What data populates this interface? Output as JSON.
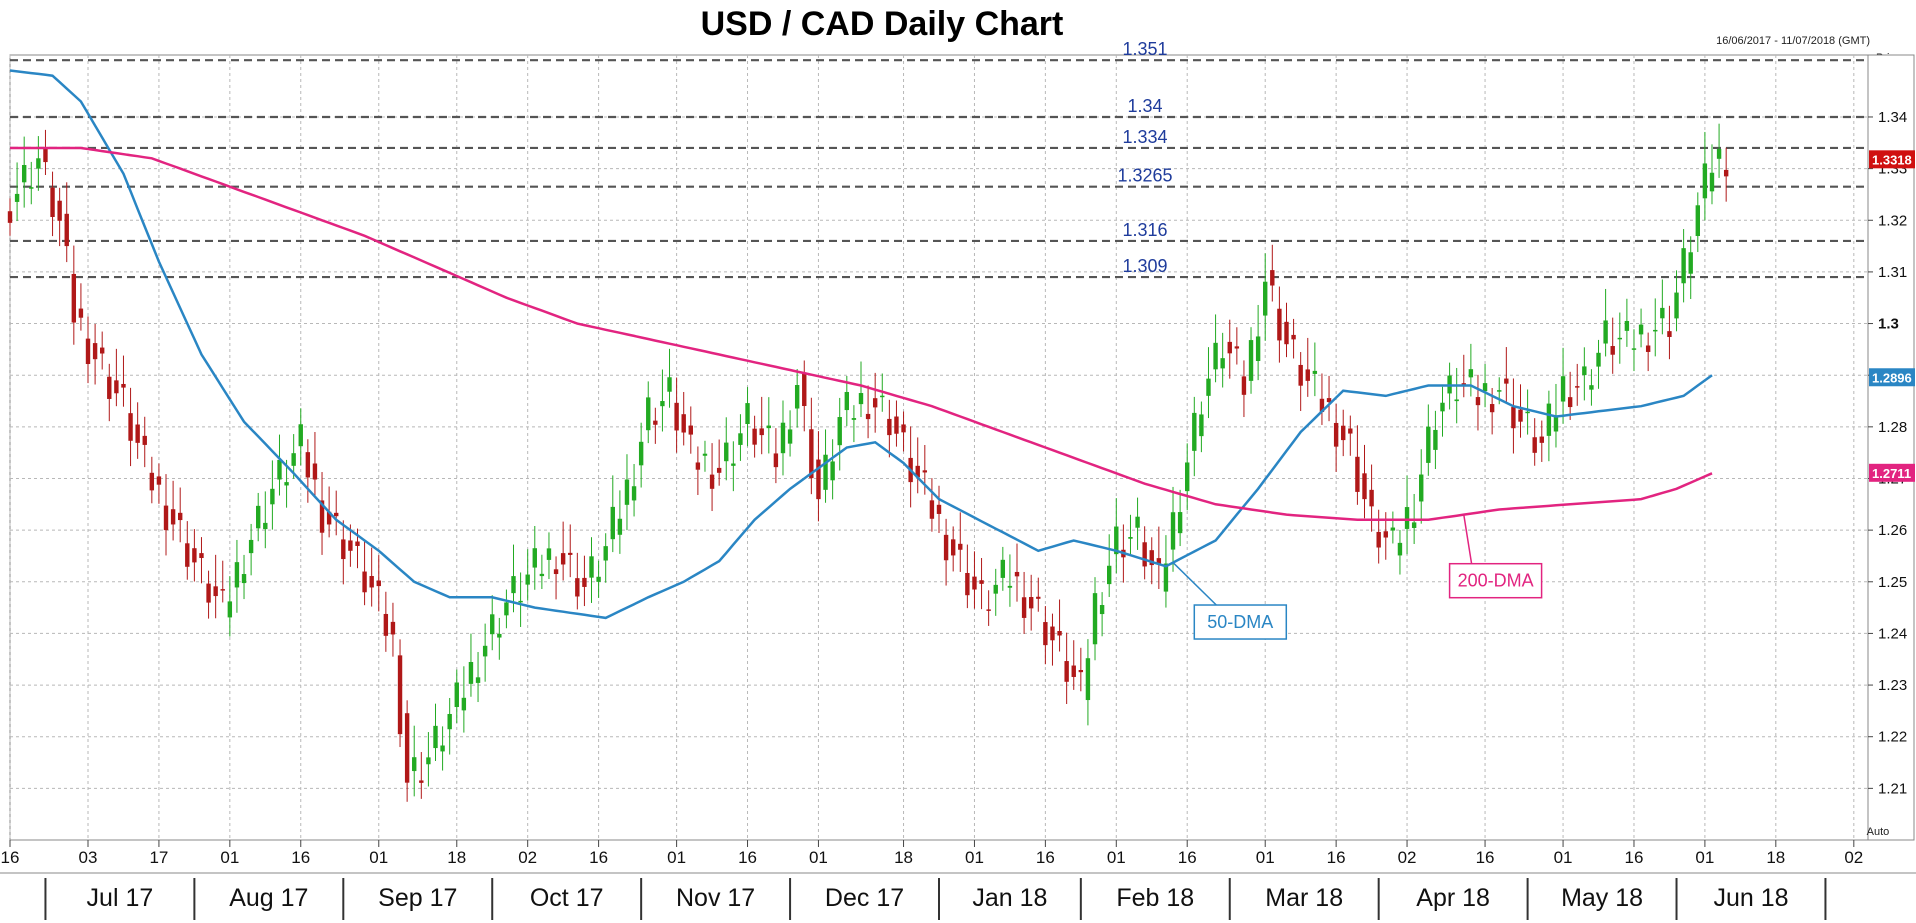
{
  "chart_data": {
    "type": "candlestick",
    "title": "USD / CAD Daily Chart",
    "date_range": "16/06/2017 - 11/07/2018 (GMT)",
    "price_axis_label": "Price\n/USD",
    "ylim": [
      1.2,
      1.352
    ],
    "y_ticks": [
      "1.34",
      "1.33",
      "1.32",
      "1.31",
      "1.3",
      "1.29",
      "1.28",
      "1.27",
      "1.26",
      "1.25",
      "1.24",
      "1.23",
      "1.22",
      "1.21"
    ],
    "x_ticks": [
      "16",
      "03",
      "17",
      "01",
      "16",
      "01",
      "18",
      "02",
      "16",
      "01",
      "16",
      "01",
      "18",
      "01",
      "16",
      "01",
      "16",
      "01",
      "16",
      "02",
      "16",
      "01",
      "16",
      "01",
      "18",
      "02"
    ],
    "x_tick_positions": [
      0,
      11,
      21,
      31,
      41,
      52,
      63,
      73,
      83,
      94,
      104,
      114,
      126,
      136,
      146,
      156,
      166,
      177,
      187,
      197,
      208,
      219,
      229,
      239,
      249,
      260
    ],
    "months": [
      "Jul 17",
      "Aug 17",
      "Sep 17",
      "Oct 17",
      "Nov 17",
      "Dec 17",
      "Jan 18",
      "Feb 18",
      "Mar 18",
      "Apr 18",
      "May 18",
      "Jun 18"
    ],
    "month_separators": [
      5,
      26,
      47,
      68,
      89,
      110,
      131,
      151,
      172,
      193,
      214,
      235,
      256
    ],
    "auto_label": "Auto",
    "horizontal_levels": [
      {
        "value": 1.351,
        "label": "1.351"
      },
      {
        "value": 1.34,
        "label": "1.34"
      },
      {
        "value": 1.334,
        "label": "1.334"
      },
      {
        "value": 1.3265,
        "label": "1.3265"
      },
      {
        "value": 1.316,
        "label": "1.316"
      },
      {
        "value": 1.309,
        "label": "1.309"
      }
    ],
    "series": [
      {
        "name": "USD/CAD",
        "anchors": [
          [
            0,
            1.324
          ],
          [
            4,
            1.332
          ],
          [
            7,
            1.319
          ],
          [
            9,
            1.302
          ],
          [
            12,
            1.294
          ],
          [
            16,
            1.284
          ],
          [
            19,
            1.272
          ],
          [
            23,
            1.262
          ],
          [
            27,
            1.251
          ],
          [
            30,
            1.244
          ],
          [
            33,
            1.256
          ],
          [
            37,
            1.268
          ],
          [
            41,
            1.276
          ],
          [
            44,
            1.264
          ],
          [
            48,
            1.256
          ],
          [
            51,
            1.248
          ],
          [
            54,
            1.238
          ],
          [
            56,
            1.212
          ],
          [
            59,
            1.216
          ],
          [
            63,
            1.226
          ],
          [
            66,
            1.236
          ],
          [
            70,
            1.246
          ],
          [
            74,
            1.252
          ],
          [
            77,
            1.256
          ],
          [
            81,
            1.249
          ],
          [
            84,
            1.256
          ],
          [
            87,
            1.268
          ],
          [
            90,
            1.283
          ],
          [
            93,
            1.286
          ],
          [
            96,
            1.274
          ],
          [
            100,
            1.272
          ],
          [
            104,
            1.281
          ],
          [
            108,
            1.274
          ],
          [
            111,
            1.289
          ],
          [
            114,
            1.266
          ],
          [
            117,
            1.281
          ],
          [
            121,
            1.286
          ],
          [
            124,
            1.282
          ],
          [
            127,
            1.272
          ],
          [
            130,
            1.264
          ],
          [
            133,
            1.256
          ],
          [
            137,
            1.246
          ],
          [
            141,
            1.251
          ],
          [
            145,
            1.244
          ],
          [
            148,
            1.236
          ],
          [
            151,
            1.228
          ],
          [
            153,
            1.246
          ],
          [
            156,
            1.258
          ],
          [
            159,
            1.259
          ],
          [
            162,
            1.249
          ],
          [
            165,
            1.268
          ],
          [
            168,
            1.286
          ],
          [
            171,
            1.296
          ],
          [
            174,
            1.288
          ],
          [
            177,
            1.309
          ],
          [
            180,
            1.296
          ],
          [
            183,
            1.288
          ],
          [
            186,
            1.283
          ],
          [
            189,
            1.276
          ],
          [
            192,
            1.261
          ],
          [
            195,
            1.256
          ],
          [
            198,
            1.266
          ],
          [
            201,
            1.283
          ],
          [
            204,
            1.288
          ],
          [
            207,
            1.286
          ],
          [
            210,
            1.288
          ],
          [
            213,
            1.281
          ],
          [
            216,
            1.276
          ],
          [
            219,
            1.288
          ],
          [
            222,
            1.289
          ],
          [
            225,
            1.297
          ],
          [
            228,
            1.296
          ],
          [
            231,
            1.299
          ],
          [
            234,
            1.301
          ],
          [
            236,
            1.311
          ],
          [
            238,
            1.322
          ],
          [
            240,
            1.331
          ],
          [
            242,
            1.333
          ]
        ],
        "last_value": "1.3318",
        "color_up": "#22aa22",
        "color_down": "#b01818"
      },
      {
        "name": "50-DMA",
        "color": "#2a86c4",
        "values": [
          [
            0,
            1.349
          ],
          [
            6,
            1.348
          ],
          [
            10,
            1.343
          ],
          [
            16,
            1.329
          ],
          [
            21,
            1.312
          ],
          [
            27,
            1.294
          ],
          [
            33,
            1.281
          ],
          [
            40,
            1.271
          ],
          [
            46,
            1.262
          ],
          [
            52,
            1.256
          ],
          [
            57,
            1.25
          ],
          [
            62,
            1.247
          ],
          [
            68,
            1.247
          ],
          [
            74,
            1.245
          ],
          [
            79,
            1.244
          ],
          [
            84,
            1.243
          ],
          [
            90,
            1.247
          ],
          [
            95,
            1.25
          ],
          [
            100,
            1.254
          ],
          [
            105,
            1.262
          ],
          [
            110,
            1.268
          ],
          [
            114,
            1.272
          ],
          [
            118,
            1.276
          ],
          [
            122,
            1.277
          ],
          [
            126,
            1.273
          ],
          [
            131,
            1.266
          ],
          [
            138,
            1.261
          ],
          [
            145,
            1.256
          ],
          [
            150,
            1.258
          ],
          [
            156,
            1.256
          ],
          [
            163,
            1.253
          ],
          [
            170,
            1.258
          ],
          [
            176,
            1.268
          ],
          [
            182,
            1.279
          ],
          [
            188,
            1.287
          ],
          [
            194,
            1.286
          ],
          [
            200,
            1.288
          ],
          [
            206,
            1.288
          ],
          [
            212,
            1.284
          ],
          [
            218,
            1.282
          ],
          [
            224,
            1.283
          ],
          [
            230,
            1.284
          ],
          [
            236,
            1.286
          ],
          [
            240,
            1.29
          ]
        ],
        "tag": "1.2896",
        "label": "50-DMA"
      },
      {
        "name": "200-DMA",
        "color": "#e22480",
        "values": [
          [
            0,
            1.334
          ],
          [
            10,
            1.334
          ],
          [
            20,
            1.332
          ],
          [
            30,
            1.327
          ],
          [
            40,
            1.322
          ],
          [
            50,
            1.317
          ],
          [
            60,
            1.311
          ],
          [
            70,
            1.305
          ],
          [
            80,
            1.3
          ],
          [
            90,
            1.297
          ],
          [
            100,
            1.294
          ],
          [
            110,
            1.291
          ],
          [
            120,
            1.288
          ],
          [
            130,
            1.284
          ],
          [
            140,
            1.279
          ],
          [
            150,
            1.274
          ],
          [
            160,
            1.269
          ],
          [
            170,
            1.265
          ],
          [
            180,
            1.263
          ],
          [
            190,
            1.262
          ],
          [
            200,
            1.262
          ],
          [
            210,
            1.264
          ],
          [
            220,
            1.265
          ],
          [
            230,
            1.266
          ],
          [
            235,
            1.268
          ],
          [
            240,
            1.271
          ]
        ],
        "tag": "1.2711",
        "label": "200-DMA"
      }
    ]
  }
}
